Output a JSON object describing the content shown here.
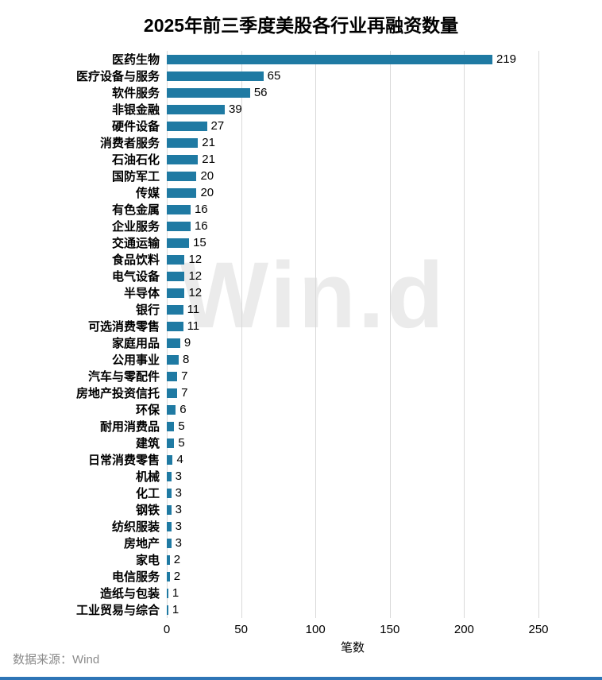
{
  "watermark": "Win.d",
  "footer": {
    "source": "数据来源：Wind"
  },
  "colors": {
    "bar": "#1f7aa3",
    "gridline": "#d9d9d9",
    "bottom_line": "#2e75b6"
  },
  "chart_data": {
    "type": "bar",
    "orientation": "horizontal",
    "title": "2025年前三季度美股各行业再融资数量",
    "xlabel": "笔数",
    "ylabel": "",
    "xlim": [
      0,
      250
    ],
    "x_ticks": [
      0,
      50,
      100,
      150,
      200,
      250
    ],
    "grid": true,
    "legend": false,
    "categories": [
      "医药生物",
      "医疗设备与服务",
      "软件服务",
      "非银金融",
      "硬件设备",
      "消费者服务",
      "石油石化",
      "国防军工",
      "传媒",
      "有色金属",
      "企业服务",
      "交通运输",
      "食品饮料",
      "电气设备",
      "半导体",
      "银行",
      "可选消费零售",
      "家庭用品",
      "公用事业",
      "汽车与零配件",
      "房地产投资信托",
      "环保",
      "耐用消费品",
      "建筑",
      "日常消费零售",
      "机械",
      "化工",
      "钢铁",
      "纺织服装",
      "房地产",
      "家电",
      "电信服务",
      "造纸与包装",
      "工业贸易与综合"
    ],
    "values": [
      219,
      65,
      56,
      39,
      27,
      21,
      21,
      20,
      20,
      16,
      16,
      15,
      12,
      12,
      12,
      11,
      11,
      9,
      8,
      7,
      7,
      6,
      5,
      5,
      4,
      3,
      3,
      3,
      3,
      3,
      2,
      2,
      1,
      1
    ]
  }
}
